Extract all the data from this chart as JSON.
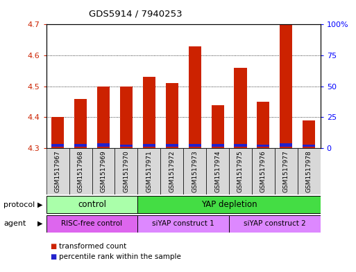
{
  "title": "GDS5914 / 7940253",
  "samples": [
    "GSM1517967",
    "GSM1517968",
    "GSM1517969",
    "GSM1517970",
    "GSM1517971",
    "GSM1517972",
    "GSM1517973",
    "GSM1517974",
    "GSM1517975",
    "GSM1517976",
    "GSM1517977",
    "GSM1517978"
  ],
  "transformed_counts": [
    4.4,
    4.46,
    4.5,
    4.5,
    4.53,
    4.51,
    4.63,
    4.44,
    4.56,
    4.45,
    4.7,
    4.39
  ],
  "percentile_values": [
    0.008,
    0.008,
    0.01,
    0.007,
    0.008,
    0.009,
    0.009,
    0.008,
    0.009,
    0.007,
    0.01,
    0.007
  ],
  "bar_base": 4.3,
  "ylim_left": [
    4.3,
    4.7
  ],
  "ylim_right": [
    0,
    100
  ],
  "yticks_left": [
    4.3,
    4.4,
    4.5,
    4.6,
    4.7
  ],
  "yticks_right": [
    0,
    25,
    50,
    75,
    100
  ],
  "ytick_labels_right": [
    "0",
    "25",
    "50",
    "75",
    "100%"
  ],
  "red_color": "#cc2200",
  "blue_color": "#2222cc",
  "protocol_labels": [
    "control",
    "YAP depletion"
  ],
  "protocol_n": [
    4,
    8
  ],
  "protocol_colors": [
    "#aaffaa",
    "#44dd44"
  ],
  "agent_labels": [
    "RISC-free control",
    "siYAP construct 1",
    "siYAP construct 2"
  ],
  "agent_n": [
    4,
    4,
    4
  ],
  "agent_colors": [
    "#dd66ee",
    "#dd88ff",
    "#dd88ff"
  ],
  "legend_items": [
    "transformed count",
    "percentile rank within the sample"
  ],
  "background_color": "#ffffff",
  "bar_width": 0.55
}
